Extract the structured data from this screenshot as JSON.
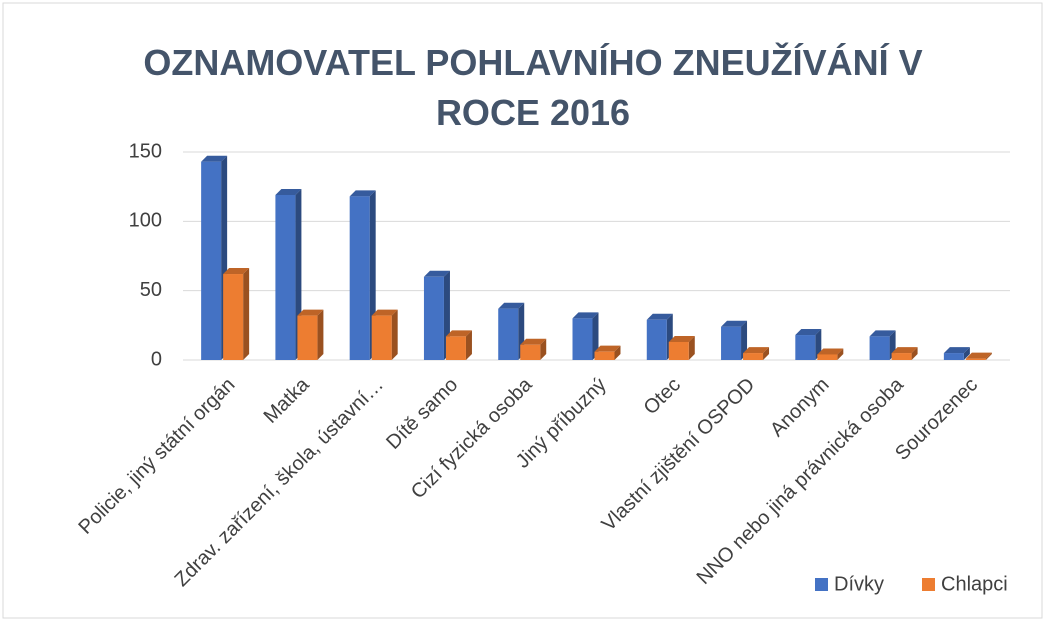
{
  "chart_data": {
    "type": "bar3d",
    "title": "OZNAMOVATEL POHLAVNÍHO ZNEUŽÍVÁNÍ V ROCE 2016",
    "categories": [
      "Policie, jiný státní orgán",
      "Matka",
      "Zdrav. zařízení, škola, ústavní…",
      "Dítě samo",
      "Cizí fyzická osoba",
      "Jiný příbuzný",
      "Otec",
      "Vlastní zjištění OSPOD",
      "Anonym",
      "NNO nebo jiná právnická osoba",
      "Sourozenec"
    ],
    "series": [
      {
        "name": "Dívky",
        "color": "#4472c4",
        "values": [
          143,
          119,
          118,
          60,
          37,
          30,
          29,
          24,
          18,
          17,
          5
        ]
      },
      {
        "name": "Chlapci",
        "color": "#ed7d31",
        "values": [
          62,
          32,
          32,
          17,
          11,
          6,
          13,
          5,
          4,
          5,
          1
        ]
      }
    ],
    "ylim": [
      0,
      150
    ],
    "yticks": [
      0,
      50,
      100,
      150
    ],
    "grid": true,
    "legend": "bottom-right"
  }
}
